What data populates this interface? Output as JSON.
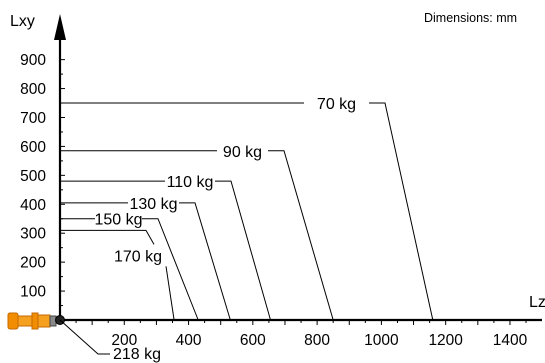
{
  "diagram": {
    "y_axis_label": "Lxy",
    "x_axis_label": "Lz",
    "dimensions_note": "Dimensions: mm",
    "y_ticks": [
      "100",
      "200",
      "300",
      "400",
      "500",
      "600",
      "700",
      "800",
      "900"
    ],
    "x_ticks": [
      "200",
      "400",
      "600",
      "800",
      "1000",
      "1200",
      "1400"
    ],
    "curves": [
      {
        "label": "70 kg",
        "lxy": 750,
        "lz": 1160
      },
      {
        "label": "90 kg",
        "lxy": 585,
        "lz": 850
      },
      {
        "label": "110 kg",
        "lxy": 480,
        "lz": 655
      },
      {
        "label": "130 kg",
        "lxy": 405,
        "lz": 530
      },
      {
        "label": "150 kg",
        "lxy": 350,
        "lz": 430
      },
      {
        "label": "170 kg",
        "lxy": 310,
        "lz": 355
      }
    ],
    "base_label": "218 kg",
    "colors": {
      "axis": "#000000",
      "robot": "#f28c00",
      "robot_dark": "#c46a00"
    }
  }
}
